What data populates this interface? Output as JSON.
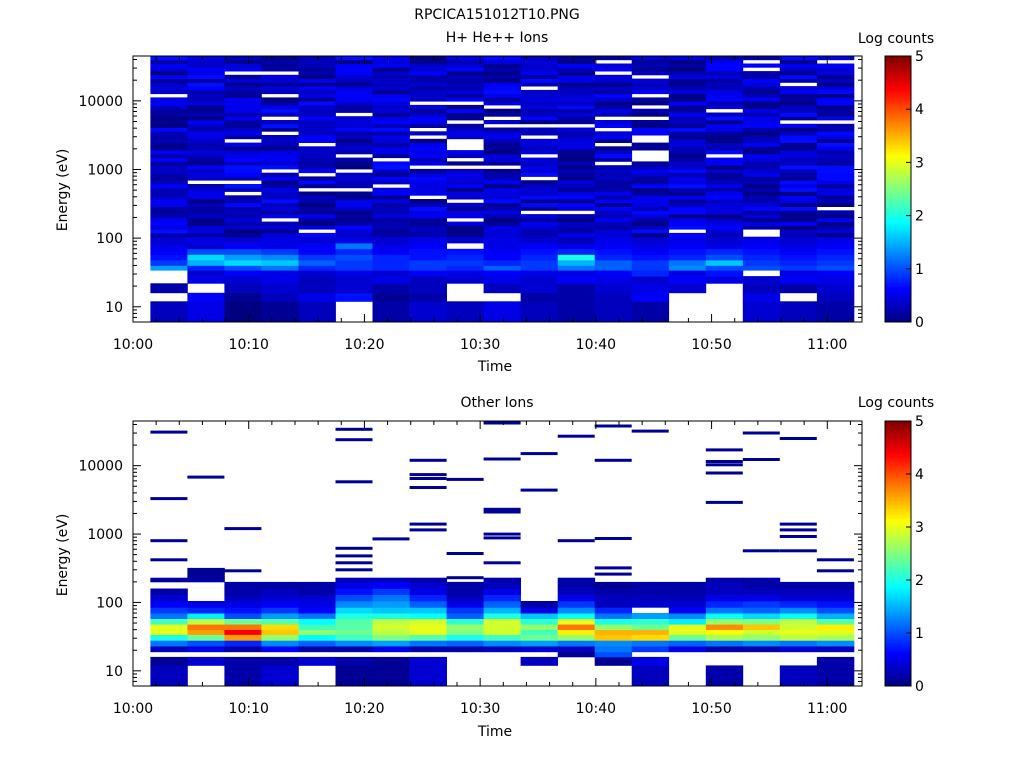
{
  "figure_title": "RPCICA151012T10.PNG",
  "colors": {
    "background": "#ffffff",
    "axis": "#000000",
    "empty_bin": "#ffffff"
  },
  "chart_data": [
    {
      "type": "heatmap",
      "title": "H+ He++ Ions",
      "xlabel": "Time",
      "ylabel": "Energy (eV)",
      "x_ticks": [
        "10:00",
        "10:10",
        "10:20",
        "10:30",
        "10:40",
        "10:50",
        "11:00"
      ],
      "x_tick_minutes": [
        0,
        10,
        20,
        30,
        40,
        50,
        60
      ],
      "xlim_minutes": [
        0,
        63
      ],
      "y_ticks": [
        "10",
        "100",
        "1000",
        "10000"
      ],
      "y_tick_values": [
        10,
        100,
        1000,
        10000
      ],
      "ylim": [
        6,
        45000
      ],
      "y_scale": "log",
      "columns_start_minute": 1.5,
      "column_width_minutes": 3.2,
      "n_columns": 19,
      "colorbar": {
        "label": "Log counts",
        "ticks": [
          "0",
          "1",
          "2",
          "3",
          "4",
          "5"
        ],
        "range": [
          0,
          5
        ],
        "colormap": "jet"
      },
      "energy_rows": [
        {
          "e_min": 6,
          "e_max": 12,
          "levels": [
            0.3,
            0.5,
            0.0,
            0.1,
            0.3,
            null,
            0.2,
            0.4,
            0.3,
            0.5,
            0.3,
            0.2,
            0.3,
            0.2,
            null,
            null,
            0.4,
            0.3,
            0.2
          ]
        },
        {
          "e_min": 12,
          "e_max": 16,
          "levels": [
            null,
            0.6,
            0.1,
            0.3,
            0.5,
            0.7,
            0.1,
            0.2,
            null,
            null,
            0.2,
            0.2,
            0.3,
            0.6,
            null,
            null,
            0.5,
            null,
            0.3
          ]
        },
        {
          "e_min": 16,
          "e_max": 22,
          "levels": [
            0.2,
            null,
            0.3,
            0.4,
            0.3,
            0.4,
            0.2,
            0.3,
            null,
            0.3,
            0.4,
            0.2,
            0.4,
            0.5,
            0.4,
            null,
            0.3,
            0.2,
            0.4
          ]
        },
        {
          "e_min": 22,
          "e_max": 28,
          "levels": [
            null,
            0.5,
            0.4,
            0.5,
            0.3,
            0.4,
            0.5,
            0.3,
            0.4,
            0.5,
            0.4,
            0.6,
            0.5,
            0.4,
            0.6,
            0.5,
            0.4,
            0.6,
            0.5
          ]
        },
        {
          "e_min": 28,
          "e_max": 34,
          "levels": [
            null,
            0.4,
            0.6,
            0.5,
            0.4,
            0.5,
            0.4,
            0.6,
            0.5,
            0.6,
            0.5,
            0.5,
            0.6,
            0.8,
            0.5,
            0.7,
            null,
            0.5,
            0.6
          ]
        },
        {
          "e_min": 34,
          "e_max": 40,
          "levels": [
            1.4,
            0.8,
            1.0,
            1.2,
            0.8,
            0.9,
            0.8,
            0.9,
            0.8,
            1.1,
            0.9,
            1.2,
            1.1,
            0.9,
            1.3,
            1.0,
            1.0,
            0.9,
            1.0
          ]
        },
        {
          "e_min": 40,
          "e_max": 48,
          "levels": [
            0.9,
            1.5,
            1.7,
            1.6,
            1.1,
            0.9,
            0.8,
            0.9,
            0.9,
            0.8,
            0.9,
            1.5,
            1.1,
            0.9,
            1.2,
            1.6,
            0.9,
            0.8,
            0.9
          ]
        },
        {
          "e_min": 48,
          "e_max": 58,
          "levels": [
            0.7,
            1.7,
            1.4,
            1.3,
            0.9,
            1.0,
            0.8,
            0.7,
            0.8,
            0.6,
            0.8,
            2.0,
            0.8,
            0.7,
            0.8,
            1.0,
            0.8,
            0.7,
            0.8
          ]
        },
        {
          "e_min": 58,
          "e_max": 70,
          "levels": [
            0.6,
            1.0,
            1.0,
            0.9,
            0.6,
            0.8,
            0.6,
            0.7,
            0.7,
            0.6,
            0.7,
            0.8,
            0.7,
            0.6,
            0.7,
            0.8,
            0.7,
            0.6,
            0.7
          ]
        },
        {
          "e_min": 70,
          "e_max": 85,
          "levels": [
            0.5,
            0.4,
            0.6,
            0.5,
            0.6,
            1.2,
            0.5,
            0.6,
            null,
            0.5,
            0.6,
            0.5,
            0.6,
            0.5,
            0.6,
            0.5,
            0.6,
            0.5,
            0.6
          ]
        },
        {
          "e_min": 85,
          "e_max": 105,
          "levels": [
            0.4,
            0.5,
            0.4,
            0.5,
            0.4,
            0.5,
            0.4,
            0.5,
            0.4,
            0.5,
            0.4,
            0.3,
            0.5,
            0.4,
            0.5,
            0.4,
            0.5,
            0.4,
            0.5
          ]
        }
      ],
      "upper_band": {
        "e_min": 105,
        "e_max": 45000,
        "base_level": 0.35,
        "spread": 0.35,
        "gap_fraction": 0.08
      }
    },
    {
      "type": "heatmap",
      "title": "Other Ions",
      "xlabel": "Time",
      "ylabel": "Energy (eV)",
      "x_ticks": [
        "10:00",
        "10:10",
        "10:20",
        "10:30",
        "10:40",
        "10:50",
        "11:00"
      ],
      "x_tick_minutes": [
        0,
        10,
        20,
        30,
        40,
        50,
        60
      ],
      "xlim_minutes": [
        0,
        63
      ],
      "y_ticks": [
        "10",
        "100",
        "1000",
        "10000"
      ],
      "y_tick_values": [
        10,
        100,
        1000,
        10000
      ],
      "ylim": [
        6,
        45000
      ],
      "y_scale": "log",
      "columns_start_minute": 1.5,
      "column_width_minutes": 3.2,
      "n_columns": 19,
      "colorbar": {
        "label": "Log counts",
        "ticks": [
          "0",
          "1",
          "2",
          "3",
          "4",
          "5"
        ],
        "range": [
          0,
          5
        ],
        "colormap": "jet"
      },
      "energy_rows": [
        {
          "e_min": 6,
          "e_max": 12,
          "levels": [
            0.3,
            null,
            0.2,
            0.4,
            null,
            0.1,
            0.1,
            0.4,
            null,
            null,
            null,
            null,
            null,
            0.3,
            null,
            0.2,
            null,
            0.3,
            0.2
          ]
        },
        {
          "e_min": 12,
          "e_max": 16,
          "levels": [
            0.1,
            0.4,
            0.2,
            0.2,
            0.4,
            0.2,
            0.1,
            0.4,
            null,
            null,
            0.3,
            null,
            0.1,
            0.5,
            null,
            null,
            null,
            null,
            0.2
          ]
        },
        {
          "e_min": 16,
          "e_max": 19,
          "levels": [
            null,
            null,
            null,
            null,
            null,
            null,
            null,
            null,
            null,
            null,
            null,
            0.1,
            1.0,
            null,
            null,
            null,
            null,
            null,
            null
          ]
        },
        {
          "e_min": 19,
          "e_max": 23,
          "levels": [
            0.3,
            0.5,
            0.2,
            0.6,
            0.2,
            0.2,
            0.5,
            0.2,
            0.2,
            0.3,
            0.4,
            0.3,
            1.2,
            0.9,
            0.5,
            0.2,
            0.2,
            0.4,
            0.3
          ]
        },
        {
          "e_min": 23,
          "e_max": 28,
          "levels": [
            1.2,
            1.0,
            0.8,
            1.3,
            1.1,
            1.3,
            1.4,
            1.2,
            1.1,
            1.3,
            1.4,
            1.2,
            1.3,
            1.2,
            1.1,
            1.2,
            1.3,
            1.2,
            1.3
          ]
        },
        {
          "e_min": 28,
          "e_max": 34,
          "levels": [
            2.0,
            2.4,
            3.6,
            2.6,
            1.9,
            2.2,
            2.5,
            2.3,
            2.0,
            2.2,
            2.4,
            2.6,
            3.4,
            3.3,
            2.4,
            2.7,
            2.6,
            2.8,
            2.7
          ]
        },
        {
          "e_min": 34,
          "e_max": 40,
          "levels": [
            3.0,
            3.6,
            4.4,
            3.4,
            2.6,
            2.4,
            2.8,
            3.0,
            2.5,
            2.9,
            2.2,
            3.2,
            3.5,
            3.5,
            3.0,
            3.1,
            2.9,
            3.0,
            3.0
          ]
        },
        {
          "e_min": 40,
          "e_max": 48,
          "levels": [
            3.0,
            3.8,
            3.8,
            3.3,
            2.2,
            2.3,
            2.9,
            3.0,
            2.6,
            2.9,
            2.6,
            3.8,
            2.6,
            2.4,
            3.0,
            3.7,
            3.4,
            2.9,
            3.2
          ]
        },
        {
          "e_min": 48,
          "e_max": 58,
          "levels": [
            2.2,
            2.8,
            2.4,
            2.3,
            1.9,
            2.3,
            2.8,
            2.9,
            2.1,
            2.9,
            2.1,
            3.0,
            2.0,
            2.1,
            1.8,
            2.6,
            2.5,
            2.8,
            2.3
          ]
        },
        {
          "e_min": 58,
          "e_max": 70,
          "levels": [
            1.2,
            1.8,
            1.0,
            1.4,
            1.2,
            2.0,
            2.0,
            1.9,
            1.1,
            2.0,
            1.6,
            1.9,
            1.2,
            1.4,
            1.3,
            1.9,
            1.7,
            1.9,
            1.5
          ]
        },
        {
          "e_min": 70,
          "e_max": 85,
          "levels": [
            0.9,
            0.8,
            0.7,
            0.9,
            0.6,
            1.7,
            1.6,
            1.6,
            0.9,
            1.5,
            0.5,
            1.3,
            0.8,
            null,
            0.6,
            1.2,
            1.1,
            1.3,
            1.0
          ]
        },
        {
          "e_min": 85,
          "e_max": 105,
          "levels": [
            0.6,
            0.5,
            0.5,
            0.6,
            0.5,
            1.3,
            1.4,
            1.1,
            0.5,
            1.1,
            0.2,
            0.9,
            0.3,
            0.4,
            0.4,
            0.8,
            0.9,
            0.8,
            0.7
          ]
        },
        {
          "e_min": 105,
          "e_max": 130,
          "levels": [
            0.4,
            null,
            0.3,
            0.4,
            0.4,
            1.0,
            1.2,
            0.8,
            0.3,
            0.8,
            null,
            0.5,
            0.3,
            0.3,
            0.3,
            0.5,
            0.5,
            0.4,
            0.4
          ]
        },
        {
          "e_min": 130,
          "e_max": 160,
          "levels": [
            0.2,
            null,
            0.2,
            0.3,
            0.2,
            0.7,
            0.9,
            0.5,
            0.2,
            0.5,
            null,
            0.3,
            0.2,
            0.2,
            0.2,
            0.3,
            0.3,
            0.3,
            0.3
          ]
        },
        {
          "e_min": 160,
          "e_max": 200,
          "levels": [
            null,
            null,
            0.2,
            0.2,
            0.2,
            0.5,
            0.6,
            0.4,
            0.2,
            0.3,
            null,
            0.2,
            0.1,
            0.2,
            0.2,
            0.3,
            0.2,
            0.2,
            0.2
          ]
        },
        {
          "e_min": 200,
          "e_max": 230,
          "levels": [
            0.3,
            0.2,
            null,
            null,
            null,
            0.3,
            0.3,
            0.2,
            null,
            0.2,
            null,
            0.2,
            null,
            null,
            null,
            0.2,
            0.2,
            null,
            null
          ]
        },
        {
          "e_min": 230,
          "e_max": 320,
          "levels": [
            null,
            0.1,
            null,
            null,
            null,
            null,
            null,
            null,
            null,
            null,
            null,
            null,
            null,
            null,
            null,
            null,
            null,
            null,
            null
          ]
        }
      ],
      "isolated_lines": [
        {
          "col": 0,
          "e": 31000
        },
        {
          "col": 0,
          "e": 3300
        },
        {
          "col": 0,
          "e": 800
        },
        {
          "col": 0,
          "e": 420
        },
        {
          "col": 0,
          "e": 210
        },
        {
          "col": 1,
          "e": 6800
        },
        {
          "col": 2,
          "e": 1200
        },
        {
          "col": 2,
          "e": 290
        },
        {
          "col": 5,
          "e": 34000
        },
        {
          "col": 5,
          "e": 24000
        },
        {
          "col": 5,
          "e": 5800
        },
        {
          "col": 5,
          "e": 620
        },
        {
          "col": 5,
          "e": 480
        },
        {
          "col": 5,
          "e": 380
        },
        {
          "col": 5,
          "e": 300
        },
        {
          "col": 6,
          "e": 850
        },
        {
          "col": 7,
          "e": 12000
        },
        {
          "col": 7,
          "e": 7400
        },
        {
          "col": 7,
          "e": 6500
        },
        {
          "col": 7,
          "e": 4800
        },
        {
          "col": 7,
          "e": 1400
        },
        {
          "col": 7,
          "e": 1150
        },
        {
          "col": 8,
          "e": 6300
        },
        {
          "col": 8,
          "e": 520
        },
        {
          "col": 8,
          "e": 230
        },
        {
          "col": 9,
          "e": 42000
        },
        {
          "col": 9,
          "e": 12500
        },
        {
          "col": 9,
          "e": 2300
        },
        {
          "col": 9,
          "e": 2100
        },
        {
          "col": 9,
          "e": 1000
        },
        {
          "col": 9,
          "e": 880
        },
        {
          "col": 9,
          "e": 380
        },
        {
          "col": 10,
          "e": 15000
        },
        {
          "col": 10,
          "e": 4400
        },
        {
          "col": 11,
          "e": 27000
        },
        {
          "col": 11,
          "e": 800
        },
        {
          "col": 12,
          "e": 38000
        },
        {
          "col": 12,
          "e": 12000
        },
        {
          "col": 12,
          "e": 860
        },
        {
          "col": 12,
          "e": 320
        },
        {
          "col": 12,
          "e": 260
        },
        {
          "col": 13,
          "e": 32000
        },
        {
          "col": 15,
          "e": 17000
        },
        {
          "col": 15,
          "e": 11500
        },
        {
          "col": 15,
          "e": 10300
        },
        {
          "col": 15,
          "e": 7800
        },
        {
          "col": 15,
          "e": 2900
        },
        {
          "col": 16,
          "e": 30000
        },
        {
          "col": 16,
          "e": 12300
        },
        {
          "col": 16,
          "e": 570
        },
        {
          "col": 17,
          "e": 25000
        },
        {
          "col": 17,
          "e": 1400
        },
        {
          "col": 17,
          "e": 1150
        },
        {
          "col": 17,
          "e": 920
        },
        {
          "col": 17,
          "e": 570
        },
        {
          "col": 18,
          "e": 420
        },
        {
          "col": 18,
          "e": 290
        }
      ]
    }
  ]
}
